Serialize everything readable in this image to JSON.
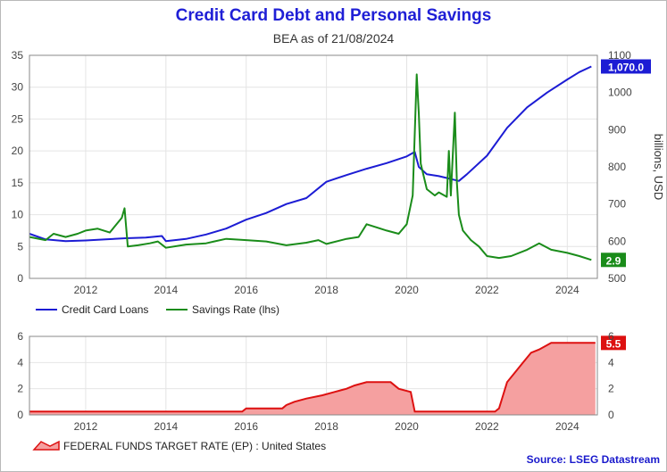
{
  "title": "Credit Card Debt and Personal Savings",
  "subtitle": "BEA as of 21/08/2024",
  "source": "Source: LSEG Datastream",
  "colors": {
    "loans": "#1c1cd4",
    "savings": "#1a8c1a",
    "fed_line": "#dd1111",
    "fed_fill": "#f5a0a0",
    "title": "#1f1fd6"
  },
  "chart_data": [
    {
      "type": "line",
      "x_axis": {
        "min": 2010.6,
        "max": 2024.75,
        "ticks": [
          2012,
          2014,
          2016,
          2018,
          2020,
          2022,
          2024
        ],
        "tick_labels": [
          "2012",
          "2014",
          "2016",
          "2018",
          "2020",
          "2022",
          "2024"
        ]
      },
      "y_left": {
        "min": 0,
        "max": 35,
        "ticks": [
          0,
          5,
          10,
          15,
          20,
          25,
          30,
          35
        ],
        "tick_labels": [
          "0",
          "5",
          "10",
          "15",
          "20",
          "25",
          "30",
          "35"
        ]
      },
      "y_right": {
        "min": 500,
        "max": 1100,
        "ticks": [
          500,
          600,
          700,
          800,
          900,
          1000,
          1100
        ],
        "tick_labels": [
          "500",
          "600",
          "700",
          "800",
          "900",
          "1000",
          "1100"
        ],
        "label": "billions, USD"
      },
      "grid": true,
      "legend_position": "bottom-left",
      "series": [
        {
          "name": "Credit Card Loans",
          "axis": "right",
          "end_label": "1,070.0",
          "x": [
            2010.6,
            2011.0,
            2011.5,
            2012.0,
            2012.5,
            2013.0,
            2013.5,
            2013.9,
            2014.0,
            2014.5,
            2015.0,
            2015.5,
            2016.0,
            2016.5,
            2017.0,
            2017.5,
            2018.0,
            2018.5,
            2019.0,
            2019.5,
            2020.0,
            2020.2,
            2020.3,
            2020.5,
            2020.8,
            2021.0,
            2021.3,
            2021.5,
            2022.0,
            2022.5,
            2023.0,
            2023.5,
            2024.0,
            2024.3,
            2024.6
          ],
          "y": [
            620,
            605,
            600,
            602,
            605,
            608,
            610,
            614,
            600,
            606,
            618,
            634,
            658,
            676,
            700,
            716,
            760,
            778,
            795,
            810,
            828,
            840,
            800,
            780,
            775,
            770,
            762,
            780,
            830,
            905,
            960,
            1000,
            1035,
            1055,
            1070
          ]
        },
        {
          "name": "Savings Rate (lhs)",
          "axis": "left",
          "end_label": "2.9",
          "x": [
            2010.6,
            2011.0,
            2011.2,
            2011.5,
            2011.8,
            2012.0,
            2012.3,
            2012.6,
            2012.9,
            2012.97,
            2013.05,
            2013.3,
            2013.6,
            2013.8,
            2014.0,
            2014.5,
            2015.0,
            2015.2,
            2015.5,
            2016.0,
            2016.5,
            2017.0,
            2017.5,
            2017.8,
            2018.0,
            2018.5,
            2018.8,
            2019.0,
            2019.5,
            2019.8,
            2020.0,
            2020.15,
            2020.25,
            2020.3,
            2020.35,
            2020.5,
            2020.7,
            2020.8,
            2021.0,
            2021.05,
            2021.1,
            2021.2,
            2021.25,
            2021.3,
            2021.4,
            2021.6,
            2021.8,
            2022.0,
            2022.3,
            2022.6,
            2023.0,
            2023.3,
            2023.6,
            2024.0,
            2024.3,
            2024.6
          ],
          "y": [
            6.5,
            6.0,
            7.0,
            6.5,
            7.0,
            7.5,
            7.8,
            7.2,
            9.5,
            11.0,
            5.0,
            5.2,
            5.5,
            5.8,
            4.8,
            5.3,
            5.5,
            5.8,
            6.2,
            6.0,
            5.8,
            5.2,
            5.6,
            6.0,
            5.4,
            6.2,
            6.5,
            8.5,
            7.5,
            7.0,
            8.5,
            13.0,
            32.0,
            26.0,
            18.0,
            14.0,
            13.0,
            13.5,
            12.8,
            20.0,
            13.0,
            26.0,
            15.0,
            10.0,
            7.5,
            6.0,
            5.0,
            3.5,
            3.2,
            3.5,
            4.5,
            5.5,
            4.5,
            4.0,
            3.5,
            2.9
          ]
        }
      ]
    },
    {
      "type": "area",
      "x_axis": {
        "min": 2010.6,
        "max": 2024.75,
        "ticks": [
          2012,
          2014,
          2016,
          2018,
          2020,
          2022,
          2024
        ],
        "tick_labels": [
          "2012",
          "2014",
          "2016",
          "2018",
          "2020",
          "2022",
          "2024"
        ]
      },
      "y_left": {
        "min": 0,
        "max": 6,
        "ticks": [
          0,
          2,
          4,
          6
        ],
        "tick_labels": [
          "0",
          "2",
          "4",
          "6"
        ]
      },
      "y_right": {
        "min": 0,
        "max": 6,
        "ticks": [
          0,
          2,
          4,
          6
        ],
        "tick_labels": [
          "0",
          "2",
          "4",
          "6"
        ]
      },
      "grid": true,
      "legend_position": "bottom-left",
      "series": [
        {
          "name": "FEDERAL FUNDS TARGET RATE (EP) : United States",
          "end_label": "5.5",
          "x": [
            2010.6,
            2015.9,
            2016.0,
            2016.9,
            2017.0,
            2017.2,
            2017.5,
            2017.9,
            2018.2,
            2018.5,
            2018.7,
            2019.0,
            2019.6,
            2019.8,
            2020.1,
            2020.2,
            2022.2,
            2022.3,
            2022.4,
            2022.5,
            2022.7,
            2022.9,
            2023.1,
            2023.3,
            2023.6,
            2024.7
          ],
          "y": [
            0.25,
            0.25,
            0.5,
            0.5,
            0.75,
            1.0,
            1.25,
            1.5,
            1.75,
            2.0,
            2.25,
            2.5,
            2.5,
            2.0,
            1.75,
            0.25,
            0.25,
            0.5,
            1.5,
            2.5,
            3.25,
            4.0,
            4.75,
            5.0,
            5.5,
            5.5
          ]
        }
      ]
    }
  ]
}
